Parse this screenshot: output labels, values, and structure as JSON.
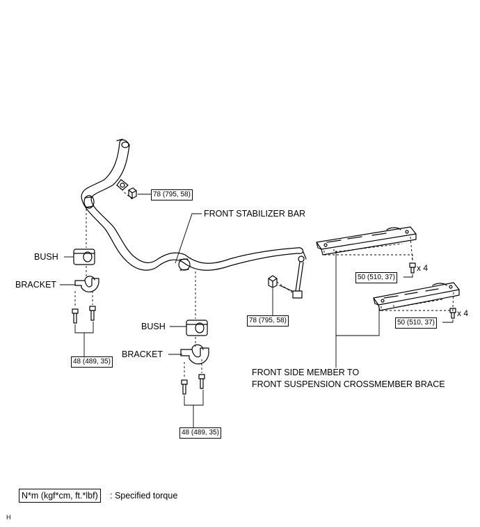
{
  "labels": {
    "front_stabilizer_bar": "FRONT STABILIZER BAR",
    "bush_left": "BUSH",
    "bracket_left": "BRACKET",
    "bush_center": "BUSH",
    "bracket_center": "BRACKET",
    "brace_line1": "FRONT SIDE MEMBER TO",
    "brace_line2": "FRONT SUSPENSION CROSSMEMBER BRACE"
  },
  "torques": {
    "stabilizer_top_nut": "78 (795, 58)",
    "link_nut": "78 (795, 58)",
    "left_bracket_bolt": "48 (489, 35)",
    "center_bracket_bolt": "48 (489, 35)",
    "upper_brace_bolt": "50 (510, 37)",
    "lower_brace_bolt": "50 (510, 37)"
  },
  "quantities": {
    "upper_brace_bolt": "x 4",
    "lower_brace_bolt": "x 4"
  },
  "legend": {
    "unit_box": "N*m (kgf*cm, ft.*lbf)",
    "description": ": Specified torque"
  },
  "corner_mark": "H"
}
